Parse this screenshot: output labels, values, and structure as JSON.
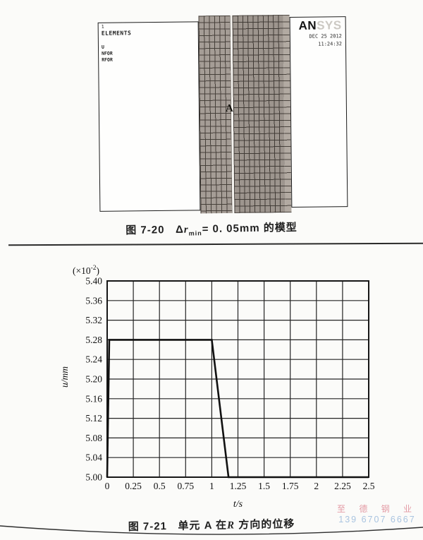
{
  "figure_model": {
    "plot_number": "1",
    "display_type": "ELEMENTS",
    "legend_items": [
      "U",
      "NFOR",
      "RFOR"
    ],
    "logo_dark": "AN",
    "logo_light": "SYS",
    "date": "DEC 25 2012",
    "time": "11:24:32",
    "node_label": "A",
    "colors": {
      "mesh_left_fill": "#a59d96",
      "mesh_right_fill": "#9d958e",
      "mesh_edge_strip": "#b2aaa2",
      "mesh_line": "#46403a"
    }
  },
  "caption_7_20": {
    "fig": "图 7-20",
    "formula_pre": "Δ",
    "formula_var": "r",
    "formula_sub": "min",
    "formula_post": "= 0. 05mm 的模型"
  },
  "chart_data": {
    "type": "line",
    "title": "",
    "xlabel": "t/s",
    "ylabel": "u/mm",
    "scale_note": "(×10⁻²)",
    "scale_note_parts": {
      "pre": "(×10",
      "sup": "-2",
      "post": ")"
    },
    "xlim": [
      0,
      2.5
    ],
    "ylim": [
      5.0,
      5.4
    ],
    "grid": true,
    "legend_position": "none",
    "x_tick_values": [
      0,
      0.25,
      0.5,
      0.75,
      1,
      1.25,
      1.5,
      1.75,
      2,
      2.25,
      2.5
    ],
    "x_tick_labels": [
      "0",
      "0.25",
      "0.5",
      "0.75",
      "1",
      "1.25",
      "1.5",
      "1.75",
      "2",
      "2.25",
      "2.5"
    ],
    "y_tick_values": [
      5.0,
      5.04,
      5.08,
      5.12,
      5.16,
      5.2,
      5.24,
      5.28,
      5.32,
      5.36,
      5.4
    ],
    "y_tick_labels": [
      "5.00",
      "5.04",
      "5.08",
      "5.12",
      "5.16",
      "5.20",
      "5.24",
      "5.28",
      "5.32",
      "5.36",
      "5.40"
    ],
    "series": [
      {
        "name": "displacement of element A in R direction",
        "x": [
          0,
          0.02,
          1.0,
          1.16,
          2.5
        ],
        "y": [
          5.0,
          5.28,
          5.28,
          5.0,
          5.0
        ]
      }
    ],
    "line_color": "#111111",
    "grid_color": "#242424"
  },
  "caption_7_21": {
    "fig": "图 7-21",
    "pre": "单元 A 在",
    "italic_var": "R",
    "post": "方向的位移"
  },
  "watermark": {
    "line1": "至 德 钢 业",
    "line2": "139 6707 6667",
    "color1": "#e39aa4",
    "color2": "#a9c4e0"
  }
}
